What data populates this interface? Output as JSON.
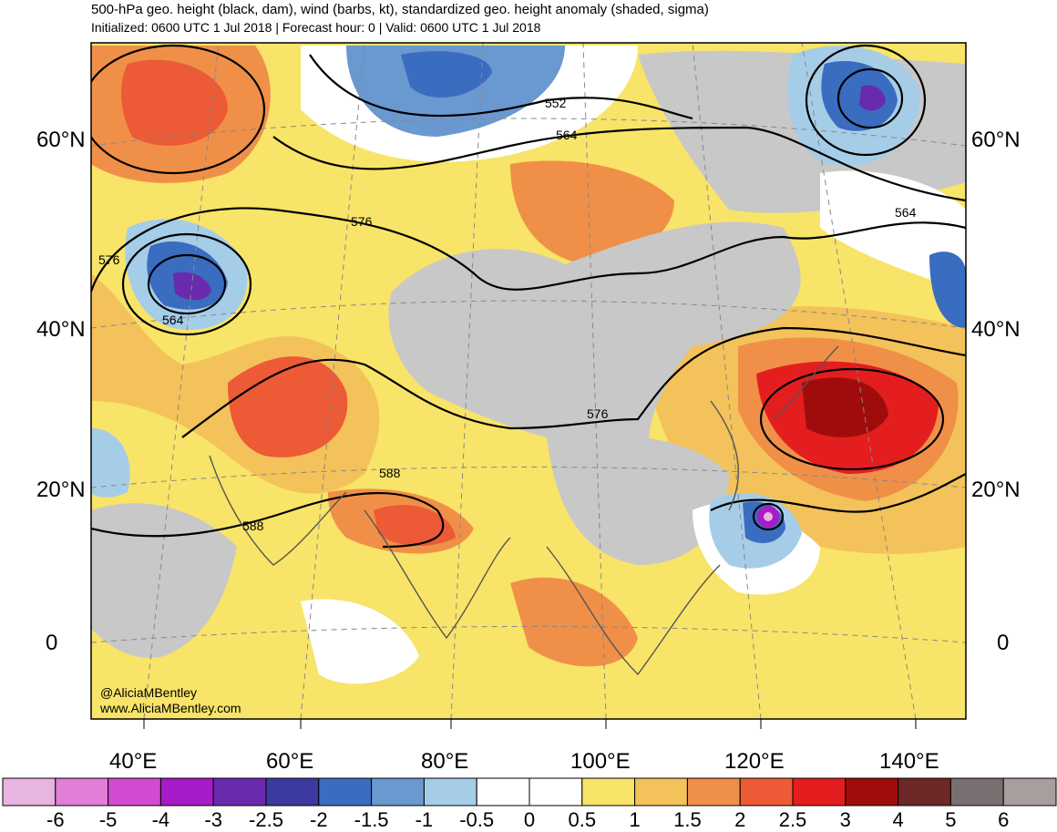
{
  "title": "500-hPa geo. height (black, dam), wind (barbs, kt), standardized geo. height anomaly (shaded, sigma)",
  "subtitle": "Initialized: 0600 UTC 1 Jul 2018 | Forecast hour: 0 | Valid: 0600 UTC 1 Jul 2018",
  "lat_labels": [
    "60°N",
    "40°N",
    "20°N",
    "0"
  ],
  "lon_labels": [
    "40°E",
    "60°E",
    "80°E",
    "100°E",
    "120°E",
    "140°E"
  ],
  "contour_labels": [
    "552",
    "564",
    "564",
    "576",
    "576",
    "564",
    "576",
    "588",
    "588"
  ],
  "credit": {
    "handle": "@AliciaMBentley",
    "url": "www.AliciaMBentley.com"
  },
  "colorbar": {
    "labels": [
      "-6",
      "-5",
      "-4",
      "-3",
      "-2.5",
      "-2",
      "-1.5",
      "-1",
      "-0.5",
      "0",
      "0.5",
      "1",
      "1.5",
      "2",
      "2.5",
      "3",
      "4",
      "5",
      "6"
    ],
    "colors": [
      "#e8b4e0",
      "#e07ed8",
      "#d24ad0",
      "#a81bc8",
      "#6a2aae",
      "#3a3aa0",
      "#3a6cc0",
      "#6a98d0",
      "#a6cde8",
      "#ffffff",
      "#ffffff",
      "#f8e468",
      "#f4c25a",
      "#f09048",
      "#ec5a36",
      "#e41e1e",
      "#a00c0c",
      "#6e2828",
      "#787070",
      "#a89e9e"
    ]
  }
}
